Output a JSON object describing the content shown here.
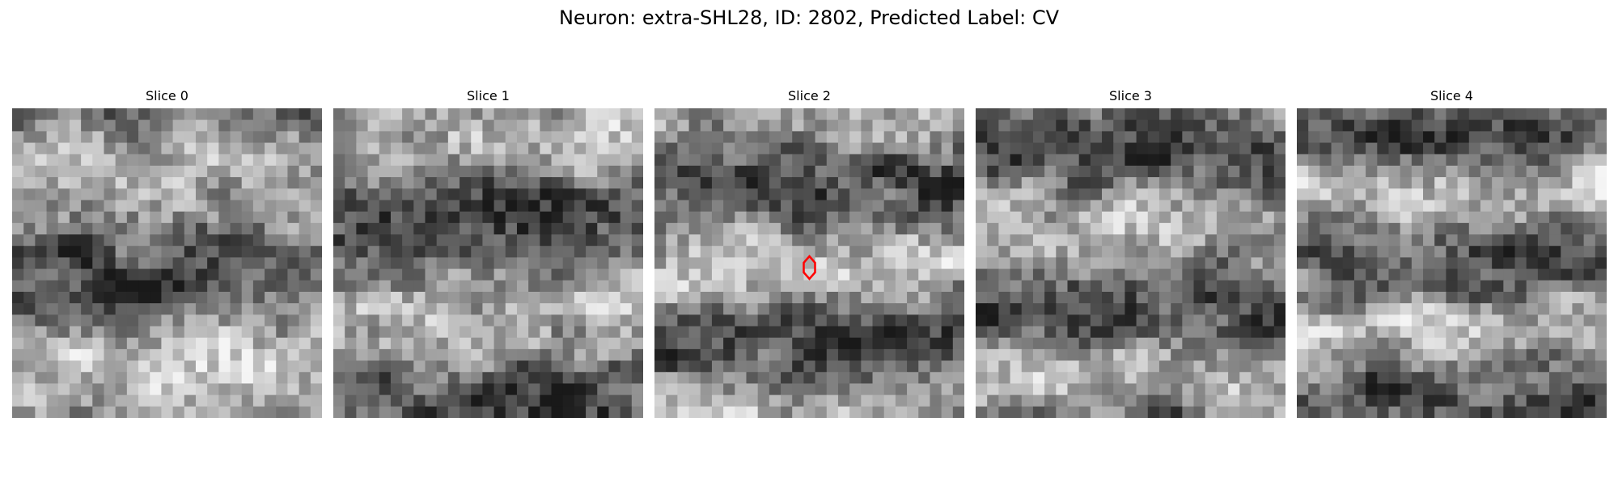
{
  "figure": {
    "title": "Neuron: extra-SHL28, ID: 2802, Predicted Label: CV"
  },
  "panels": [
    {
      "title": "Slice 0",
      "seed": 11
    },
    {
      "title": "Slice 1",
      "seed": 23
    },
    {
      "title": "Slice 2",
      "seed": 37
    },
    {
      "title": "Slice 3",
      "seed": 53
    },
    {
      "title": "Slice 4",
      "seed": 71
    }
  ],
  "marker": {
    "panel_index": 2,
    "color": "#ff0000",
    "shape": "diamond-outline"
  },
  "colormap": "gray"
}
